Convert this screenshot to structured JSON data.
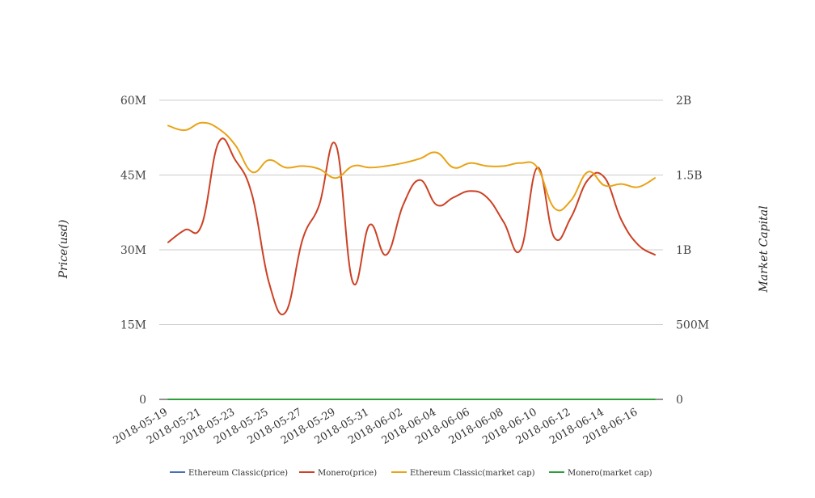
{
  "chart_data": {
    "type": "line",
    "y_left": {
      "label": "Price(usd)",
      "ylim": [
        0,
        60000000
      ],
      "ticks": [
        0,
        15000000,
        30000000,
        45000000,
        60000000
      ],
      "tick_labels": [
        "0",
        "15M",
        "30M",
        "45M",
        "60M"
      ]
    },
    "y_right": {
      "label": "Market Capital",
      "ylim": [
        0,
        2000000000
      ],
      "ticks": [
        0,
        500000000,
        1000000000,
        1500000000,
        2000000000
      ],
      "tick_labels": [
        "0",
        "500M",
        "1B",
        "1.5B",
        "2B"
      ]
    },
    "x": [
      "2018-05-19",
      "2018-05-20",
      "2018-05-21",
      "2018-05-22",
      "2018-05-23",
      "2018-05-24",
      "2018-05-25",
      "2018-05-26",
      "2018-05-27",
      "2018-05-28",
      "2018-05-29",
      "2018-05-30",
      "2018-05-31",
      "2018-06-01",
      "2018-06-02",
      "2018-06-03",
      "2018-06-04",
      "2018-06-05",
      "2018-06-06",
      "2018-06-07",
      "2018-06-08",
      "2018-06-09",
      "2018-06-10",
      "2018-06-11",
      "2018-06-12",
      "2018-06-13",
      "2018-06-14",
      "2018-06-15",
      "2018-06-16",
      "2018-06-17"
    ],
    "x_tick_labels": [
      "2018-05-19",
      "2018-05-21",
      "2018-05-23",
      "2018-05-25",
      "2018-05-27",
      "2018-05-29",
      "2018-05-31",
      "2018-06-02",
      "2018-06-04",
      "2018-06-06",
      "2018-06-08",
      "2018-06-10",
      "2018-06-12",
      "2018-06-14",
      "2018-06-16"
    ],
    "grid": true,
    "legend_position": "bottom",
    "series": [
      {
        "name": "Ethereum Classic(price)",
        "axis": "left",
        "color": "#4a6fb5",
        "values": [
          16,
          15,
          15,
          16,
          17,
          16,
          15,
          14,
          14,
          15,
          16,
          14,
          13,
          14,
          14,
          15,
          14,
          14,
          14,
          14,
          14,
          13,
          13,
          12,
          12,
          13,
          13,
          12,
          12,
          13
        ]
      },
      {
        "name": "Monero(price)",
        "axis": "left",
        "color": "#cc4125",
        "values": [
          31500000,
          34000000,
          35000000,
          51500000,
          48000000,
          41000000,
          23500000,
          17500000,
          32000000,
          39000000,
          51000000,
          23500000,
          35000000,
          29000000,
          39000000,
          44000000,
          39000000,
          40500000,
          41800000,
          40500000,
          35500000,
          30000000,
          46500000,
          32500000,
          36500000,
          44000000,
          44500000,
          36000000,
          31000000,
          29000000
        ]
      },
      {
        "name": "Ethereum Classic(market cap)",
        "axis": "right",
        "color": "#e8a317",
        "values": [
          1830000000,
          1800000000,
          1850000000,
          1810000000,
          1700000000,
          1520000000,
          1600000000,
          1550000000,
          1560000000,
          1540000000,
          1480000000,
          1560000000,
          1550000000,
          1560000000,
          1580000000,
          1610000000,
          1650000000,
          1550000000,
          1580000000,
          1560000000,
          1560000000,
          1580000000,
          1550000000,
          1280000000,
          1330000000,
          1520000000,
          1430000000,
          1440000000,
          1420000000,
          1480000000
        ]
      },
      {
        "name": "Monero(market cap)",
        "axis": "right",
        "color": "#2e9e3a",
        "values": [
          260,
          255,
          250,
          265,
          270,
          262,
          250,
          240,
          245,
          252,
          262,
          240,
          232,
          236,
          240,
          248,
          242,
          240,
          242,
          244,
          240,
          236,
          232,
          228,
          226,
          232,
          234,
          228,
          228,
          230
        ]
      }
    ]
  }
}
